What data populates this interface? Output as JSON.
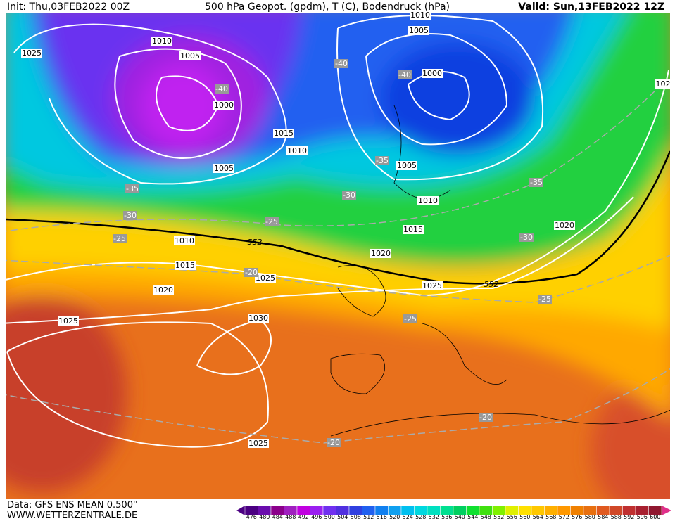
{
  "header": {
    "init": "Init: Thu,03FEB2022 00Z",
    "title": "500 hPa Geopot. (gpdm), T (C), Bodendruck (hPa)",
    "valid": "Valid: Sun,13FEB2022 12Z"
  },
  "map": {
    "isobar_labels": [
      "1025",
      "1010",
      "1005",
      "1000",
      "1015",
      "1010",
      "1005",
      "1010",
      "1015",
      "1020",
      "1025",
      "1030",
      "1025",
      "1025",
      "1020",
      "1015",
      "1010",
      "1005",
      "1000",
      "1005",
      "1010",
      "1020",
      "1025",
      "102"
    ],
    "temperature_labels": [
      "-40",
      "-40",
      "-40",
      "-35",
      "-30",
      "-25",
      "-35",
      "-30",
      "-25",
      "-20",
      "-35",
      "-30",
      "-25",
      "-25",
      "-20",
      "-20"
    ],
    "geopotential_labels": [
      "552",
      "552"
    ]
  },
  "footer": {
    "data": "Data: GFS ENS MEAN 0.500°",
    "site": "WWW.WETTERZENTRALE.DE"
  },
  "colorbar": {
    "values": [
      476,
      480,
      484,
      488,
      492,
      496,
      500,
      504,
      508,
      512,
      516,
      520,
      524,
      528,
      532,
      536,
      540,
      544,
      548,
      552,
      556,
      560,
      564,
      568,
      572,
      576,
      580,
      584,
      588,
      592,
      596,
      600
    ],
    "colors": [
      "#4b0082",
      "#6a0dad",
      "#8b008b",
      "#a020c0",
      "#c000e0",
      "#9a20f0",
      "#7030f0",
      "#5030e0",
      "#3040e0",
      "#2060f0",
      "#1080f0",
      "#10a0f0",
      "#00c0f0",
      "#00d8e0",
      "#00e0c0",
      "#00e090",
      "#00d060",
      "#10e030",
      "#40e010",
      "#80f000",
      "#e0f000",
      "#ffe000",
      "#ffc800",
      "#ffb000",
      "#ff9800",
      "#f08000",
      "#e87010",
      "#e05a20",
      "#d04828",
      "#c03030",
      "#a82030",
      "#901830"
    ]
  }
}
